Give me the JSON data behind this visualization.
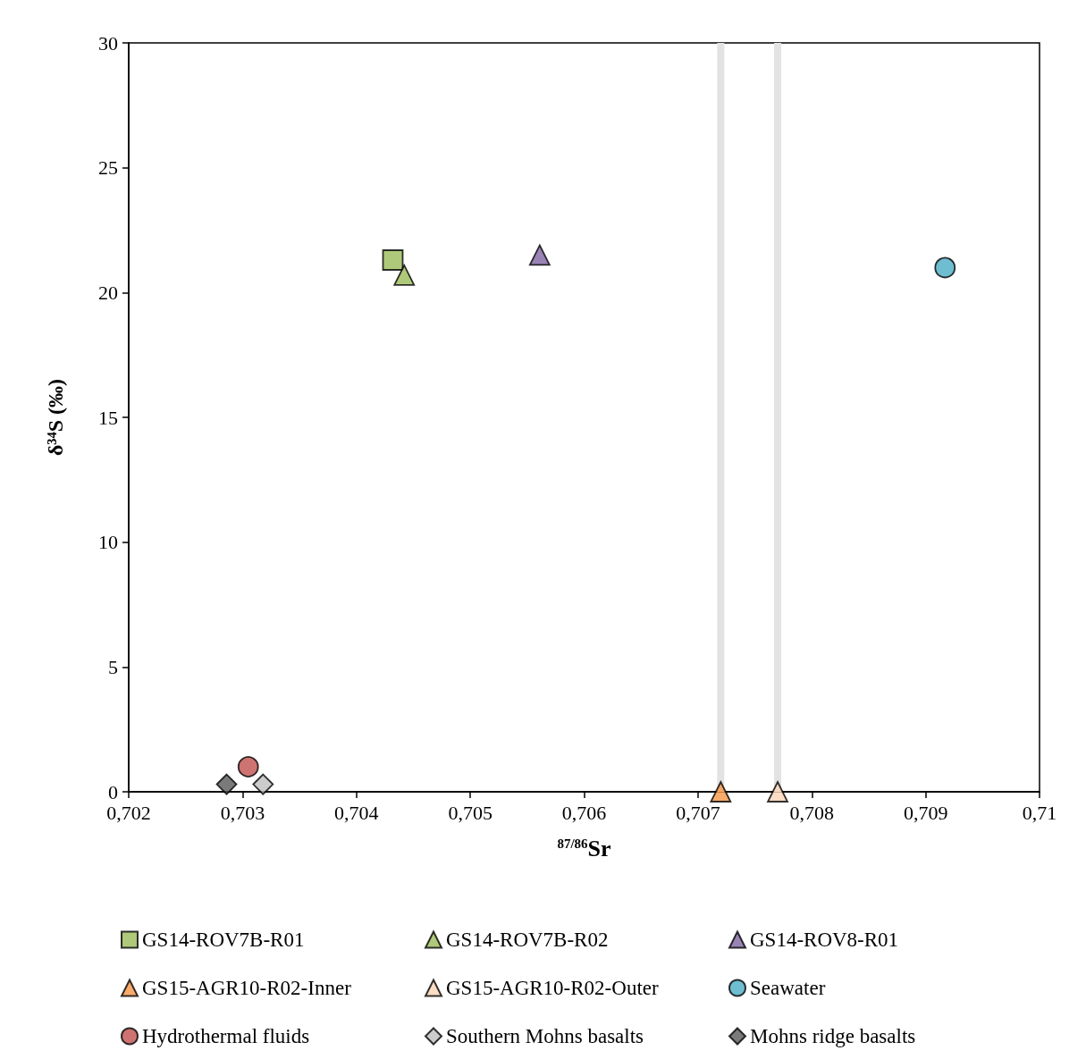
{
  "chart_data": {
    "type": "scatter",
    "xlabel": "$^{87/86}$Sr",
    "ylabel": "δ³⁴S (‰)",
    "xlim": [
      0.702,
      0.71
    ],
    "xticks": [
      {
        "value": 0.702,
        "label": "0,702"
      },
      {
        "value": 0.703,
        "label": "0,703"
      },
      {
        "value": 0.704,
        "label": "0,704"
      },
      {
        "value": 0.705,
        "label": "0,705"
      },
      {
        "value": 0.706,
        "label": "0,706"
      },
      {
        "value": 0.707,
        "label": "0,707"
      },
      {
        "value": 0.708,
        "label": "0,708"
      },
      {
        "value": 0.709,
        "label": "0,709"
      },
      {
        "value": 0.71,
        "label": "0,71"
      }
    ],
    "ylim": [
      0,
      30
    ],
    "yticks": [
      0,
      5,
      10,
      15,
      20,
      25,
      30
    ],
    "grid": false,
    "legend": "bottom",
    "ref_lines": [
      {
        "axis": "x",
        "value": 0.7072,
        "color": "#e3e3e3"
      },
      {
        "axis": "x",
        "value": 0.7077,
        "color": "#e3e3e3"
      }
    ],
    "series": [
      {
        "name": "GS14-ROV7B-R01",
        "color": "#9bbb59",
        "marker": "square",
        "x": [
          0.70432
        ],
        "values": [
          21.3
        ]
      },
      {
        "name": "GS14-ROV7B-R02",
        "color": "#9bbb59",
        "marker": "triangle",
        "x": [
          0.70442
        ],
        "values": [
          20.7
        ]
      },
      {
        "name": "GS14-ROV8-R01",
        "color": "#8064a2",
        "marker": "triangle",
        "x": [
          0.70561
        ],
        "values": [
          21.5
        ]
      },
      {
        "name": "GS15-AGR10-R02-Inner",
        "color": "#f79646",
        "marker": "triangle",
        "x": [
          0.7072
        ],
        "values": [
          0
        ]
      },
      {
        "name": "GS15-AGR10-R02-Outer",
        "color": "#fcd5b5",
        "marker": "triangle",
        "x": [
          0.7077
        ],
        "values": [
          0
        ]
      },
      {
        "name": "Seawater",
        "color": "#4bacc6",
        "marker": "circle",
        "x": [
          0.70917
        ],
        "values": [
          21.0
        ]
      },
      {
        "name": "Hydrothermal fluids",
        "color": "#c0504d",
        "marker": "circle",
        "x": [
          0.70305
        ],
        "values": [
          1.0
        ]
      },
      {
        "name": "Southern Mohns basalts",
        "color": "#bfbfbf",
        "marker": "diamond",
        "x": [
          0.70318
        ],
        "values": [
          0.3
        ]
      },
      {
        "name": "Mohns ridge basalts",
        "color": "#595959",
        "marker": "diamond",
        "x": [
          0.70286
        ],
        "values": [
          0.3
        ]
      }
    ]
  }
}
